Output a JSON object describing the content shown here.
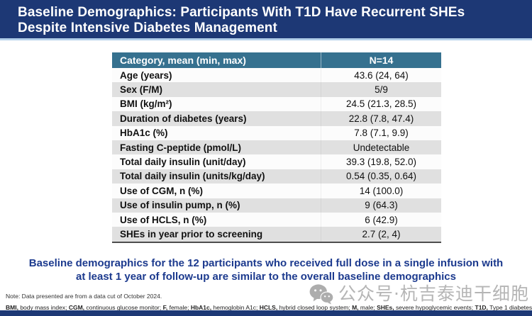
{
  "slide": {
    "title_line1": "Baseline Demographics: Participants With T1D Have Recurrent SHEs",
    "title_line2": "Despite Intensive Diabetes Management"
  },
  "table": {
    "header": {
      "category": "Category, mean (min, max)",
      "n": "N=14"
    },
    "rows": [
      {
        "label": "Age (years)",
        "value": "43.6 (24, 64)"
      },
      {
        "label": "Sex (F/M)",
        "value": "5/9"
      },
      {
        "label": "BMI (kg/m²)",
        "value": "24.5 (21.3, 28.5)"
      },
      {
        "label": "Duration of diabetes (years)",
        "value": "22.8 (7.8, 47.4)"
      },
      {
        "label": "HbA1c (%)",
        "value": "7.8 (7.1, 9.9)"
      },
      {
        "label": "Fasting C-peptide (pmol/L)",
        "value": "Undetectable"
      },
      {
        "label": "Total daily insulin (unit/day)",
        "value": "39.3 (19.8, 52.0)"
      },
      {
        "label": "Total daily insulin (units/kg/day)",
        "value": "0.54 (0.35, 0.64)"
      },
      {
        "label": "Use of CGM, n (%)",
        "value": "14 (100.0)"
      },
      {
        "label": "Use of insulin pump, n (%)",
        "value": "9 (64.3)"
      },
      {
        "label": "Use of HCLS, n (%)",
        "value": "6 (42.9)"
      },
      {
        "label": "SHEs in year prior to screening",
        "value": "2.7 (2, 4)"
      }
    ]
  },
  "summary": {
    "line1": "Baseline demographics for the 12 participants who received full dose in a single infusion with",
    "line2": "at least 1 year of follow-up are similar to the overall baseline demographics"
  },
  "footnotes": {
    "note": "Note: Data presented are from a data cut of October 2024.",
    "abbreviations": [
      {
        "text": "BMI,",
        "bold": true
      },
      {
        "text": " body mass index; ",
        "bold": false
      },
      {
        "text": "CGM,",
        "bold": true
      },
      {
        "text": " continuous glucose monitor; ",
        "bold": false
      },
      {
        "text": "F,",
        "bold": true
      },
      {
        "text": " female; ",
        "bold": false
      },
      {
        "text": "HbA1c,",
        "bold": true
      },
      {
        "text": " hemoglobin A1c; ",
        "bold": false
      },
      {
        "text": "HCLS,",
        "bold": true
      },
      {
        "text": " hybrid closed loop system; ",
        "bold": false
      },
      {
        "text": "M,",
        "bold": true
      },
      {
        "text": " male; ",
        "bold": false
      },
      {
        "text": "SHEs,",
        "bold": true
      },
      {
        "text": " severe hypoglycemic events; ",
        "bold": false
      },
      {
        "text": "T1D,",
        "bold": true
      },
      {
        "text": " Type 1 diabetes",
        "bold": false
      }
    ]
  },
  "watermark": {
    "text": "公众号·杭吉泰迪干细胞",
    "icon": "wechat-icon"
  },
  "colors": {
    "title_bar": "#1d3875",
    "title_underline": "#b3cfe9",
    "table_header": "#36718f",
    "row_alt": "#e0e0e0",
    "summary_text": "#1c3a8e",
    "watermark_gray": "#b5b5b5"
  }
}
